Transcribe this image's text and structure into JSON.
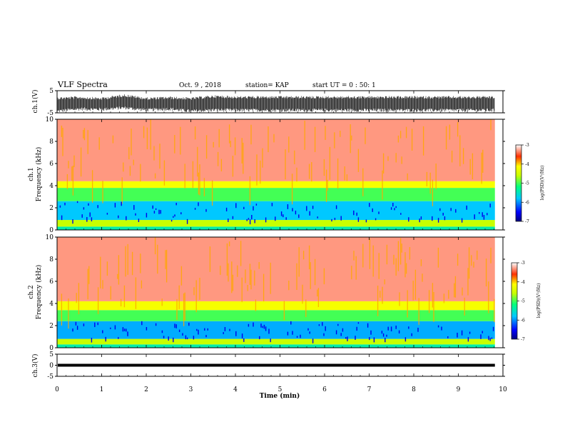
{
  "header": {
    "title": "VLF Spectra",
    "date": "Oct. 9 , 2018",
    "station": "station= KAP",
    "start": "start UT = 0 : 50: 1"
  },
  "chart_data": {
    "type": "heatmap",
    "x_axis": {
      "label": "Time (min)",
      "range": [
        0,
        10
      ],
      "ticks": [
        "0",
        "1",
        "2",
        "3",
        "4",
        "5",
        "6",
        "7",
        "8",
        "9",
        "10"
      ],
      "data_end": 9.82
    },
    "panels": [
      {
        "id": "ch1-waveform",
        "type": "line",
        "ylabel": "ch.1(V)",
        "ylim": [
          -5,
          5
        ],
        "yticks": [
          "5",
          "-5"
        ],
        "baseline": 0,
        "envelope": [
          [
            0.0,
            -5,
            2.2
          ],
          [
            0.5,
            -4,
            2.5
          ],
          [
            1.0,
            -4.2,
            2.0
          ],
          [
            1.5,
            -3.5,
            3.5
          ],
          [
            2.0,
            -4.5,
            2.0
          ],
          [
            2.5,
            -4.0,
            2.4
          ],
          [
            3.0,
            -5,
            2.0
          ],
          [
            3.5,
            -4.5,
            3.0
          ],
          [
            4.0,
            -4.6,
            2.6
          ],
          [
            5.0,
            -4.6,
            2.6
          ],
          [
            6.0,
            -4.6,
            2.6
          ],
          [
            7.0,
            -4.6,
            2.6
          ],
          [
            8.0,
            -4.6,
            2.6
          ],
          [
            9.0,
            -4.6,
            2.6
          ],
          [
            9.82,
            -4.6,
            2.6
          ]
        ]
      },
      {
        "id": "ch1-spectrogram",
        "type": "heatmap",
        "ylabel1": "ch.1",
        "ylabel2": "Frequency (kHz)",
        "ylim": [
          0,
          10
        ],
        "yticks": [
          "0",
          "2",
          "4",
          "6",
          "8",
          "10"
        ],
        "colorbar": {
          "label": "log(PSD)(V²/Hz)",
          "range": [
            -7,
            -3
          ],
          "ticks": [
            "-3",
            "-4",
            "-5",
            "-6",
            "-7"
          ]
        },
        "bands": [
          {
            "from": 0.0,
            "to": 0.3,
            "level": -5.4
          },
          {
            "from": 0.3,
            "to": 0.9,
            "level": -4.6
          },
          {
            "from": 0.9,
            "to": 2.6,
            "level": -5.8
          },
          {
            "from": 2.6,
            "to": 3.8,
            "level": -5.0
          },
          {
            "from": 3.8,
            "to": 4.4,
            "level": -4.2
          },
          {
            "from": 4.4,
            "to": 10.0,
            "level": -3.3
          }
        ]
      },
      {
        "id": "ch2-spectrogram",
        "type": "heatmap",
        "ylabel1": "ch.2",
        "ylabel2": "Frequency (kHz)",
        "ylim": [
          0,
          10
        ],
        "yticks": [
          "0",
          "2",
          "4",
          "6",
          "8",
          "10"
        ],
        "colorbar": {
          "label": "log(PSD)(V²/Hz)",
          "range": [
            -7,
            -3
          ],
          "ticks": [
            "-3",
            "-4",
            "-5",
            "-6",
            "-7"
          ]
        },
        "bands": [
          {
            "from": 0.0,
            "to": 0.3,
            "level": -5.4
          },
          {
            "from": 0.3,
            "to": 0.8,
            "level": -4.6
          },
          {
            "from": 0.8,
            "to": 2.4,
            "level": -5.9
          },
          {
            "from": 2.4,
            "to": 3.4,
            "level": -5.0
          },
          {
            "from": 3.4,
            "to": 4.2,
            "level": -4.2
          },
          {
            "from": 4.2,
            "to": 10.0,
            "level": -3.3
          }
        ]
      },
      {
        "id": "ch3-waveform",
        "type": "line",
        "ylabel": "ch.3(V)",
        "ylim": [
          -5,
          5
        ],
        "yticks": [
          "5",
          "0",
          "-5"
        ],
        "constant_value": 0,
        "line_color": "#000000"
      }
    ]
  }
}
